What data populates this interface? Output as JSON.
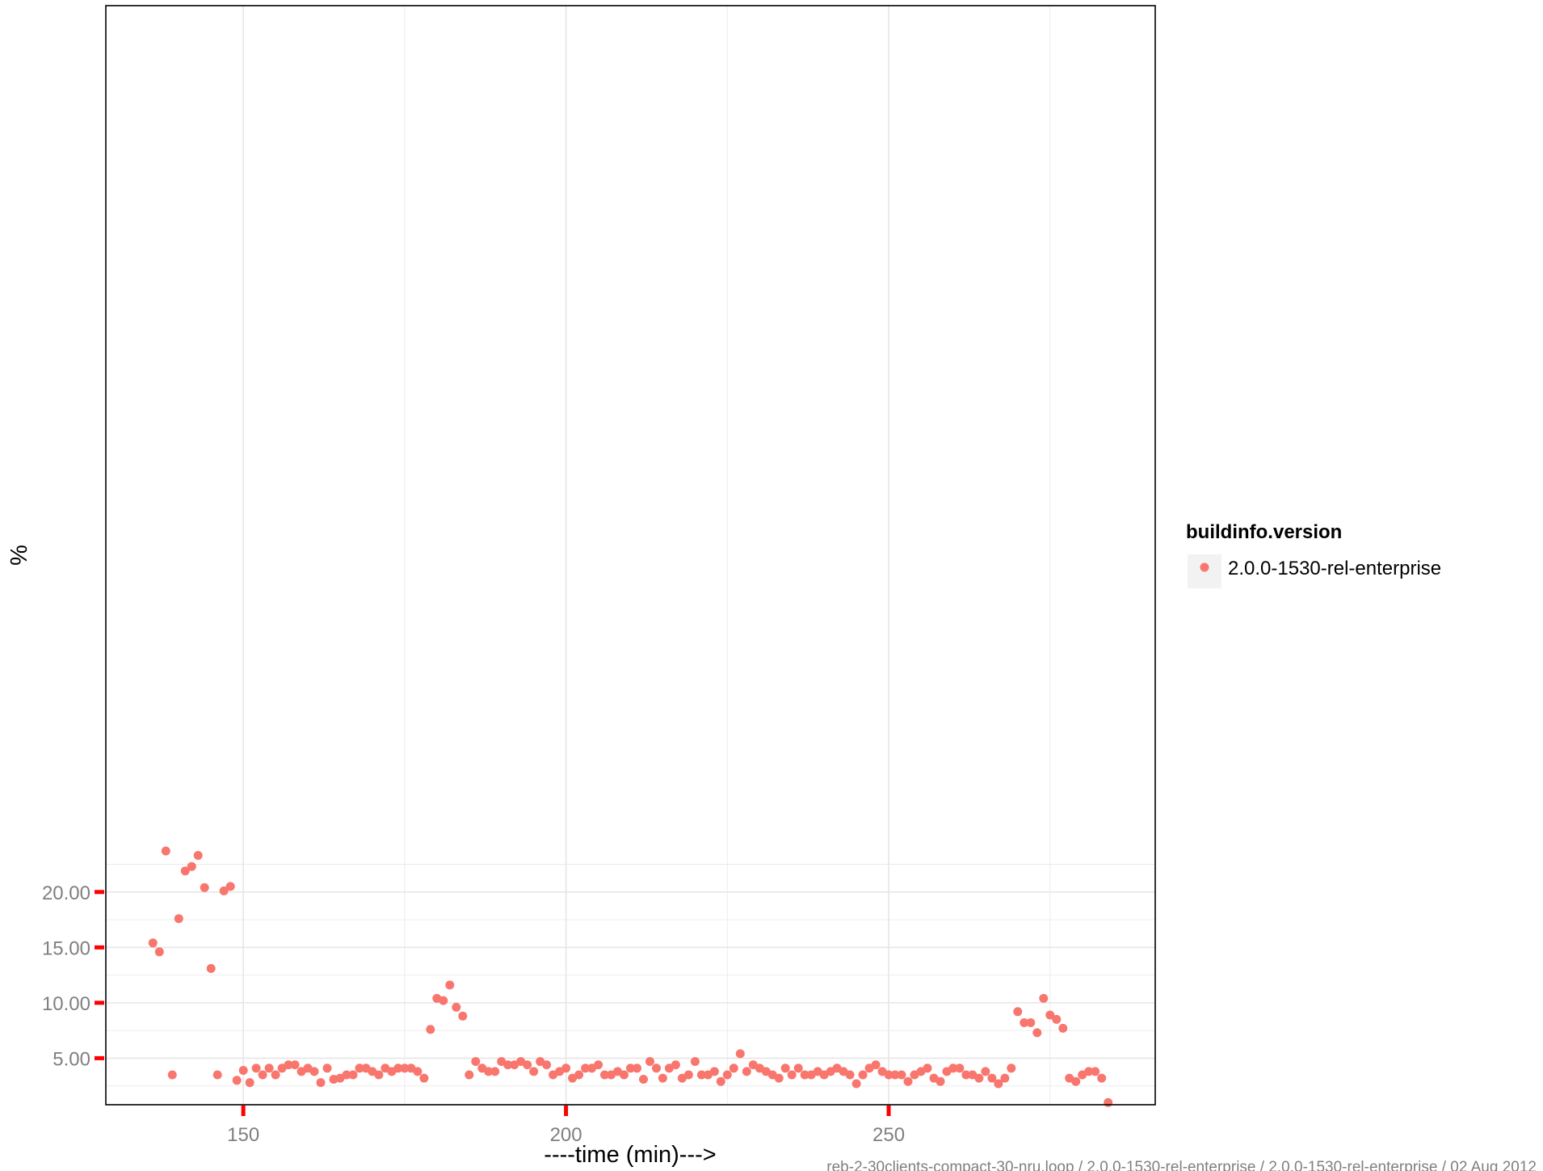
{
  "chart_data": {
    "type": "scatter",
    "xlabel": "----time (min)--->",
    "ylabel": "%",
    "caption": "reb-2-30clients-compact-30-nru.loop / 2.0.0-1530-rel-enterprise / 2.0.0-1530-rel-enterprise / 02 Aug 2012",
    "xlim": [
      128.7,
      291.3
    ],
    "ylim": [
      0.8,
      100
    ],
    "x_ticks": [
      150,
      200,
      250
    ],
    "x_tick_labels": [
      "150",
      "200",
      "250"
    ],
    "y_ticks": [
      5,
      10,
      15,
      20
    ],
    "y_tick_labels": [
      "5.00",
      "10.00",
      "15.00",
      "20.00"
    ],
    "grid": true,
    "legend": {
      "title": "buildinfo.version",
      "position": "right",
      "entries": [
        "2.0.0-1530-rel-enterprise"
      ]
    },
    "colors": {
      "series": "#F8766D",
      "tick_mark": "#ff0000",
      "grid": "#ebebeb",
      "panel_border": "#000000"
    },
    "series": [
      {
        "name": "2.0.0-1530-rel-enterprise",
        "x": [
          136,
          137,
          138,
          139,
          140,
          141,
          142,
          143,
          144,
          145,
          146,
          147,
          148,
          149,
          150,
          151,
          152,
          153,
          154,
          155,
          156,
          157,
          158,
          159,
          160,
          161,
          162,
          163,
          164,
          165,
          166,
          167,
          168,
          169,
          170,
          171,
          172,
          173,
          174,
          175,
          176,
          177,
          178,
          179,
          180,
          181,
          182,
          183,
          184,
          185,
          186,
          187,
          188,
          189,
          190,
          191,
          192,
          193,
          194,
          195,
          196,
          197,
          198,
          199,
          200,
          201,
          202,
          203,
          204,
          205,
          206,
          207,
          208,
          209,
          210,
          211,
          212,
          213,
          214,
          215,
          216,
          217,
          218,
          219,
          220,
          221,
          222,
          223,
          224,
          225,
          226,
          227,
          228,
          229,
          230,
          231,
          232,
          233,
          234,
          235,
          236,
          237,
          238,
          239,
          240,
          241,
          242,
          243,
          244,
          245,
          246,
          247,
          248,
          249,
          250,
          251,
          252,
          253,
          254,
          255,
          256,
          257,
          258,
          259,
          260,
          261,
          262,
          263,
          264,
          265,
          266,
          267,
          268,
          269,
          270,
          271,
          272,
          273,
          274,
          275,
          276,
          277,
          278,
          279,
          280,
          281,
          282,
          283,
          284
        ],
        "y": [
          15.4,
          14.6,
          23.7,
          3.5,
          17.6,
          21.9,
          22.3,
          23.3,
          20.4,
          13.1,
          3.5,
          20.1,
          20.5,
          3.0,
          3.9,
          2.8,
          4.1,
          3.5,
          4.1,
          3.5,
          4.1,
          4.4,
          4.4,
          3.8,
          4.1,
          3.8,
          2.8,
          4.1,
          3.1,
          3.2,
          3.5,
          3.5,
          4.1,
          4.1,
          3.8,
          3.5,
          4.1,
          3.8,
          4.1,
          4.1,
          4.1,
          3.8,
          3.2,
          7.6,
          10.4,
          10.2,
          11.6,
          9.6,
          8.8,
          3.5,
          4.7,
          4.1,
          3.8,
          3.8,
          4.7,
          4.4,
          4.4,
          4.7,
          4.4,
          3.8,
          4.7,
          4.4,
          3.5,
          3.8,
          4.1,
          3.2,
          3.5,
          4.1,
          4.1,
          4.4,
          3.5,
          3.5,
          3.8,
          3.5,
          4.1,
          4.1,
          3.1,
          4.7,
          4.1,
          3.2,
          4.1,
          4.4,
          3.2,
          3.5,
          4.7,
          3.5,
          3.5,
          3.8,
          2.9,
          3.5,
          4.1,
          5.4,
          3.8,
          4.4,
          4.1,
          3.8,
          3.5,
          3.2,
          4.1,
          3.5,
          4.1,
          3.5,
          3.5,
          3.8,
          3.5,
          3.8,
          4.1,
          3.8,
          3.5,
          2.7,
          3.5,
          4.1,
          4.4,
          3.8,
          3.5,
          3.5,
          3.5,
          2.9,
          3.5,
          3.8,
          4.1,
          3.2,
          2.9,
          3.8,
          4.1,
          4.1,
          3.5,
          3.5,
          3.2,
          3.8,
          3.2,
          2.7,
          3.2,
          4.1,
          9.2,
          8.2,
          8.2,
          7.3,
          10.4,
          8.9,
          8.5,
          7.7,
          3.2,
          2.9,
          3.5,
          3.8,
          3.8,
          3.2,
          1.0
        ]
      }
    ]
  }
}
